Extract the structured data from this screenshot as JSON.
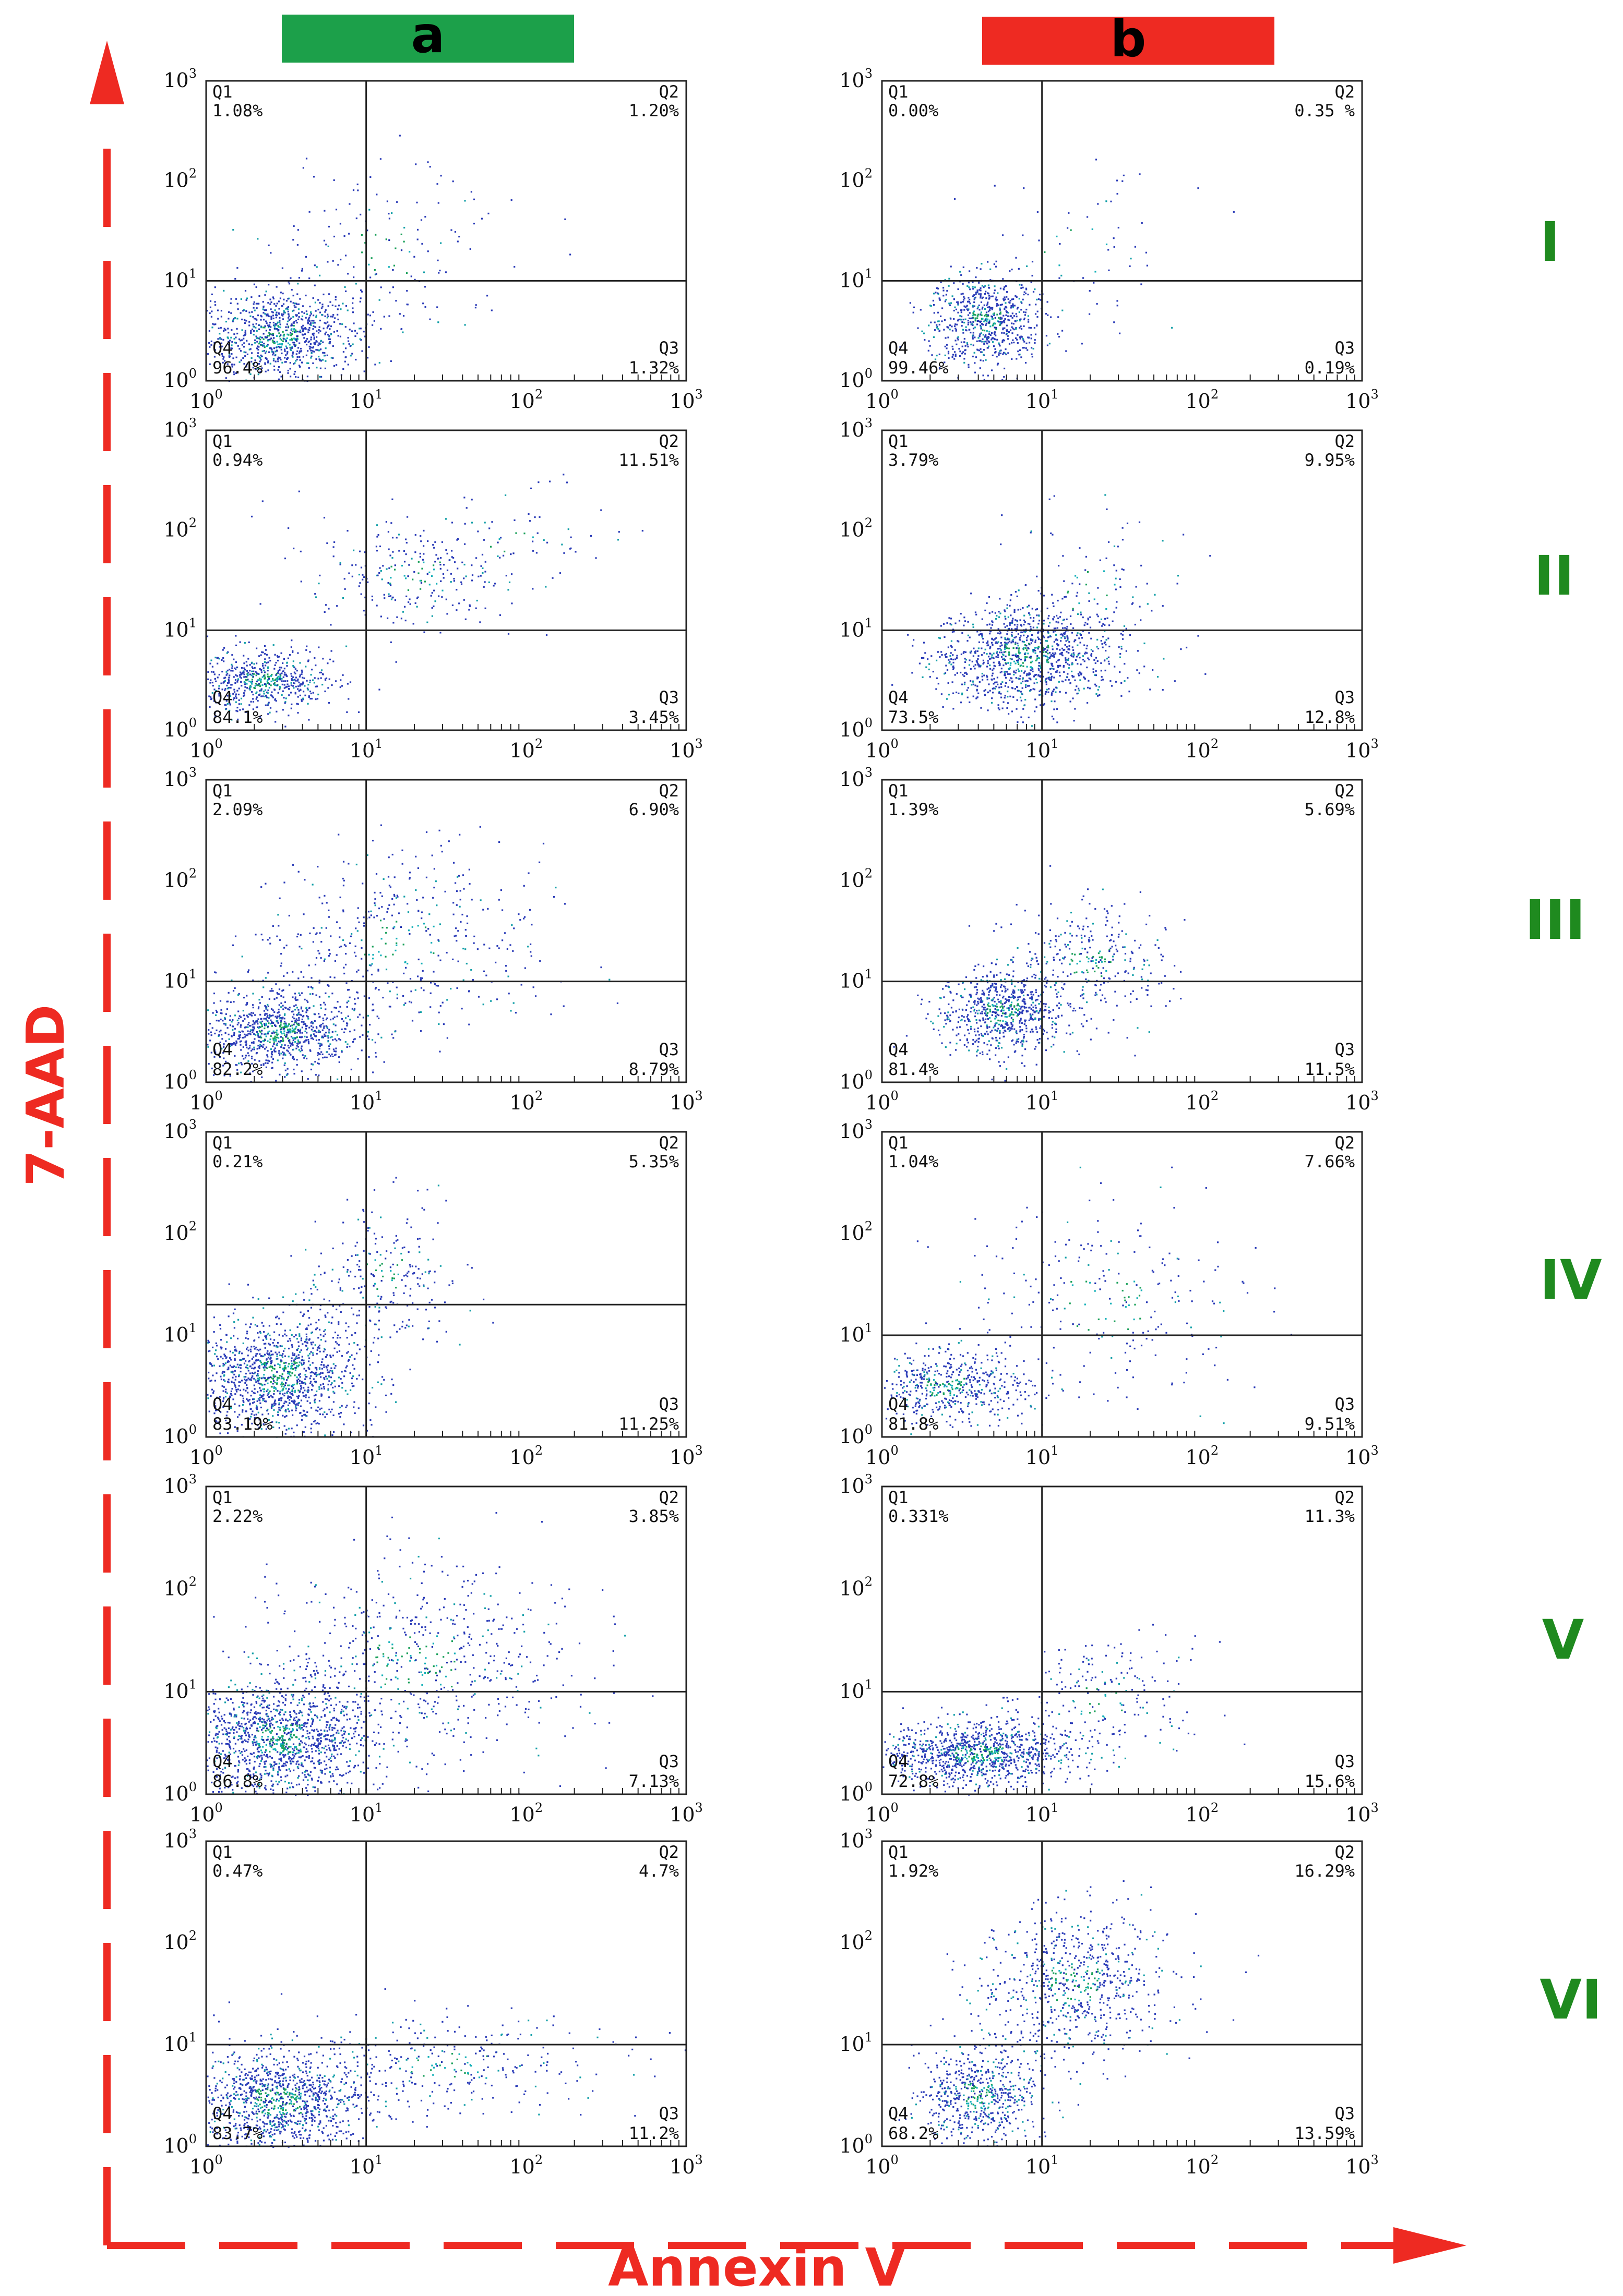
{
  "column_headers": [
    {
      "label": "a",
      "color": "#1ca04a"
    },
    {
      "label": "b",
      "color": "#ee2a22"
    }
  ],
  "row_labels": [
    "I",
    "II",
    "III",
    "IV",
    "V",
    "VI"
  ],
  "row_label_color": "#1f8a1f",
  "axis_arrow_color": "#ee2a22",
  "chart_data": [
    {
      "type": "scatter",
      "panel": "a-I",
      "xlabel": "Annexin V",
      "ylabel": "7-AAD",
      "xscale": "log",
      "yscale": "log",
      "xlim": [
        1,
        1000
      ],
      "ylim": [
        1,
        1000
      ],
      "gate": {
        "x": 10,
        "y": 10
      },
      "x_ticks": [
        {
          "base": "10",
          "exp": "0"
        },
        {
          "base": "10",
          "exp": "1"
        },
        {
          "base": "10",
          "exp": "2"
        },
        {
          "base": "10",
          "exp": "3"
        }
      ],
      "y_ticks": [
        {
          "base": "10",
          "exp": "0"
        },
        {
          "base": "10",
          "exp": "1"
        },
        {
          "base": "10",
          "exp": "2"
        },
        {
          "base": "10",
          "exp": "3"
        }
      ],
      "quadrants": {
        "Q1": "1.08%",
        "Q2": "1.20%",
        "Q3": "1.32%",
        "Q4": "96.4%"
      }
    },
    {
      "type": "scatter",
      "panel": "b-I",
      "xlabel": "Annexin V",
      "ylabel": "7-AAD",
      "xscale": "log",
      "yscale": "log",
      "xlim": [
        1,
        1000
      ],
      "ylim": [
        1,
        1000
      ],
      "gate": {
        "x": 10,
        "y": 10
      },
      "x_ticks": [
        {
          "base": "10",
          "exp": "0"
        },
        {
          "base": "10",
          "exp": "1"
        },
        {
          "base": "10",
          "exp": "2"
        },
        {
          "base": "10",
          "exp": "3"
        }
      ],
      "y_ticks": [
        {
          "base": "10",
          "exp": "0"
        },
        {
          "base": "10",
          "exp": "1"
        },
        {
          "base": "10",
          "exp": "2"
        },
        {
          "base": "10",
          "exp": "3"
        }
      ],
      "quadrants": {
        "Q1": "0.00%",
        "Q2": "0.35 %",
        "Q3": "0.19%",
        "Q4": "99.46%"
      }
    },
    {
      "type": "scatter",
      "panel": "a-II",
      "xlabel": "Annexin V",
      "ylabel": "7-AAD",
      "xscale": "log",
      "yscale": "log",
      "xlim": [
        1,
        1000
      ],
      "ylim": [
        1,
        1000
      ],
      "gate": {
        "x": 10,
        "y": 10
      },
      "x_ticks": [
        {
          "base": "10",
          "exp": "0"
        },
        {
          "base": "10",
          "exp": "1"
        },
        {
          "base": "10",
          "exp": "2"
        },
        {
          "base": "10",
          "exp": "3"
        }
      ],
      "y_ticks": [
        {
          "base": "10",
          "exp": "0"
        },
        {
          "base": "10",
          "exp": "1"
        },
        {
          "base": "10",
          "exp": "2"
        },
        {
          "base": "10",
          "exp": "3"
        }
      ],
      "quadrants": {
        "Q1": "0.94%",
        "Q2": "11.51%",
        "Q3": "3.45%",
        "Q4": "84.1%"
      }
    },
    {
      "type": "scatter",
      "panel": "b-II",
      "xlabel": "Annexin V",
      "ylabel": "7-AAD",
      "xscale": "log",
      "yscale": "log",
      "xlim": [
        1,
        1000
      ],
      "ylim": [
        1,
        1000
      ],
      "gate": {
        "x": 10,
        "y": 10
      },
      "x_ticks": [
        {
          "base": "10",
          "exp": "0"
        },
        {
          "base": "10",
          "exp": "1"
        },
        {
          "base": "10",
          "exp": "2"
        },
        {
          "base": "10",
          "exp": "3"
        }
      ],
      "y_ticks": [
        {
          "base": "10",
          "exp": "0"
        },
        {
          "base": "10",
          "exp": "1"
        },
        {
          "base": "10",
          "exp": "2"
        },
        {
          "base": "10",
          "exp": "3"
        }
      ],
      "quadrants": {
        "Q1": "3.79%",
        "Q2": "9.95%",
        "Q3": "12.8%",
        "Q4": "73.5%"
      }
    },
    {
      "type": "scatter",
      "panel": "a-III",
      "xlabel": "Annexin V",
      "ylabel": "7-AAD",
      "xscale": "log",
      "yscale": "log",
      "xlim": [
        1,
        1000
      ],
      "ylim": [
        1,
        1000
      ],
      "gate": {
        "x": 10,
        "y": 10
      },
      "x_ticks": [
        {
          "base": "10",
          "exp": "0"
        },
        {
          "base": "10",
          "exp": "1"
        },
        {
          "base": "10",
          "exp": "2"
        },
        {
          "base": "10",
          "exp": "3"
        }
      ],
      "y_ticks": [
        {
          "base": "10",
          "exp": "0"
        },
        {
          "base": "10",
          "exp": "1"
        },
        {
          "base": "10",
          "exp": "2"
        },
        {
          "base": "10",
          "exp": "3"
        }
      ],
      "quadrants": {
        "Q1": "2.09%",
        "Q2": "6.90%",
        "Q3": "8.79%",
        "Q4": "82.2%"
      }
    },
    {
      "type": "scatter",
      "panel": "b-III",
      "xlabel": "Annexin V",
      "ylabel": "7-AAD",
      "xscale": "log",
      "yscale": "log",
      "xlim": [
        1,
        1000
      ],
      "ylim": [
        1,
        1000
      ],
      "gate": {
        "x": 10,
        "y": 10
      },
      "x_ticks": [
        {
          "base": "10",
          "exp": "0"
        },
        {
          "base": "10",
          "exp": "1"
        },
        {
          "base": "10",
          "exp": "2"
        },
        {
          "base": "10",
          "exp": "3"
        }
      ],
      "y_ticks": [
        {
          "base": "10",
          "exp": "0"
        },
        {
          "base": "10",
          "exp": "1"
        },
        {
          "base": "10",
          "exp": "2"
        },
        {
          "base": "10",
          "exp": "3"
        }
      ],
      "quadrants": {
        "Q1": "1.39%",
        "Q2": "5.69%",
        "Q3": "11.5%",
        "Q4": "81.4%"
      }
    },
    {
      "type": "scatter",
      "panel": "a-IV",
      "xlabel": "Annexin V",
      "ylabel": "7-AAD",
      "xscale": "log",
      "yscale": "log",
      "xlim": [
        1,
        1000
      ],
      "ylim": [
        1,
        1000
      ],
      "gate": {
        "x": 10,
        "y": 20
      },
      "x_ticks": [
        {
          "base": "10",
          "exp": "0"
        },
        {
          "base": "10",
          "exp": "1"
        },
        {
          "base": "10",
          "exp": "2"
        },
        {
          "base": "10",
          "exp": "3"
        }
      ],
      "y_ticks": [
        {
          "base": "10",
          "exp": "0"
        },
        {
          "base": "10",
          "exp": "1"
        },
        {
          "base": "10",
          "exp": "2"
        },
        {
          "base": "10",
          "exp": "3"
        }
      ],
      "quadrants": {
        "Q1": "0.21%",
        "Q2": "5.35%",
        "Q3": "11.25%",
        "Q4": "83.19%"
      }
    },
    {
      "type": "scatter",
      "panel": "b-IV",
      "xlabel": "Annexin V",
      "ylabel": "7-AAD",
      "xscale": "log",
      "yscale": "log",
      "xlim": [
        1,
        1000
      ],
      "ylim": [
        1,
        1000
      ],
      "gate": {
        "x": 10,
        "y": 10
      },
      "x_ticks": [
        {
          "base": "10",
          "exp": "0"
        },
        {
          "base": "10",
          "exp": "1"
        },
        {
          "base": "10",
          "exp": "2"
        },
        {
          "base": "10",
          "exp": "3"
        }
      ],
      "y_ticks": [
        {
          "base": "10",
          "exp": "0"
        },
        {
          "base": "10",
          "exp": "1"
        },
        {
          "base": "10",
          "exp": "2"
        },
        {
          "base": "10",
          "exp": "3"
        }
      ],
      "quadrants": {
        "Q1": "1.04%",
        "Q2": "7.66%",
        "Q3": "9.51%",
        "Q4": "81.8%"
      }
    },
    {
      "type": "scatter",
      "panel": "a-V",
      "xlabel": "Annexin V",
      "ylabel": "7-AAD",
      "xscale": "log",
      "yscale": "log",
      "xlim": [
        1,
        1000
      ],
      "ylim": [
        1,
        1000
      ],
      "gate": {
        "x": 10,
        "y": 10
      },
      "x_ticks": [
        {
          "base": "10",
          "exp": "0"
        },
        {
          "base": "10",
          "exp": "1"
        },
        {
          "base": "10",
          "exp": "2"
        },
        {
          "base": "10",
          "exp": "3"
        }
      ],
      "y_ticks": [
        {
          "base": "10",
          "exp": "0"
        },
        {
          "base": "10",
          "exp": "1"
        },
        {
          "base": "10",
          "exp": "2"
        },
        {
          "base": "10",
          "exp": "3"
        }
      ],
      "quadrants": {
        "Q1": "2.22%",
        "Q2": "3.85%",
        "Q3": "7.13%",
        "Q4": "86.8%"
      }
    },
    {
      "type": "scatter",
      "panel": "b-V",
      "xlabel": "Annexin V",
      "ylabel": "7-AAD",
      "xscale": "log",
      "yscale": "log",
      "xlim": [
        1,
        1000
      ],
      "ylim": [
        1,
        1000
      ],
      "gate": {
        "x": 10,
        "y": 10
      },
      "x_ticks": [
        {
          "base": "10",
          "exp": "0"
        },
        {
          "base": "10",
          "exp": "1"
        },
        {
          "base": "10",
          "exp": "2"
        },
        {
          "base": "10",
          "exp": "3"
        }
      ],
      "y_ticks": [
        {
          "base": "10",
          "exp": "0"
        },
        {
          "base": "10",
          "exp": "1"
        },
        {
          "base": "10",
          "exp": "2"
        },
        {
          "base": "10",
          "exp": "3"
        }
      ],
      "quadrants": {
        "Q1": "0.331%",
        "Q2": "11.3%",
        "Q3": "15.6%",
        "Q4": "72.8%"
      }
    },
    {
      "type": "scatter",
      "panel": "a-VI",
      "xlabel": "Annexin V",
      "ylabel": "7-AAD",
      "xscale": "log",
      "yscale": "log",
      "xlim": [
        1,
        1000
      ],
      "ylim": [
        1,
        1000
      ],
      "gate": {
        "x": 10,
        "y": 10
      },
      "x_ticks": [
        {
          "base": "10",
          "exp": "0"
        },
        {
          "base": "10",
          "exp": "1"
        },
        {
          "base": "10",
          "exp": "2"
        },
        {
          "base": "10",
          "exp": "3"
        }
      ],
      "y_ticks": [
        {
          "base": "10",
          "exp": "0"
        },
        {
          "base": "10",
          "exp": "1"
        },
        {
          "base": "10",
          "exp": "2"
        },
        {
          "base": "10",
          "exp": "3"
        }
      ],
      "quadrants": {
        "Q1": "0.47%",
        "Q2": "4.7%",
        "Q3": "11.2%",
        "Q4": "83.7%"
      }
    },
    {
      "type": "scatter",
      "panel": "b-VI",
      "xlabel": "Annexin V",
      "ylabel": "7-AAD",
      "xscale": "log",
      "yscale": "log",
      "xlim": [
        1,
        1000
      ],
      "ylim": [
        1,
        1000
      ],
      "gate": {
        "x": 10,
        "y": 10
      },
      "x_ticks": [
        {
          "base": "10",
          "exp": "0"
        },
        {
          "base": "10",
          "exp": "1"
        },
        {
          "base": "10",
          "exp": "2"
        },
        {
          "base": "10",
          "exp": "3"
        }
      ],
      "y_ticks": [
        {
          "base": "10",
          "exp": "0"
        },
        {
          "base": "10",
          "exp": "1"
        },
        {
          "base": "10",
          "exp": "2"
        },
        {
          "base": "10",
          "exp": "3"
        }
      ],
      "quadrants": {
        "Q1": "1.92%",
        "Q2": "16.29%",
        "Q3": "13.59%",
        "Q4": "68.2%"
      }
    }
  ],
  "axis_titles": {
    "x": "Annexin V",
    "y": "7-AAD"
  }
}
